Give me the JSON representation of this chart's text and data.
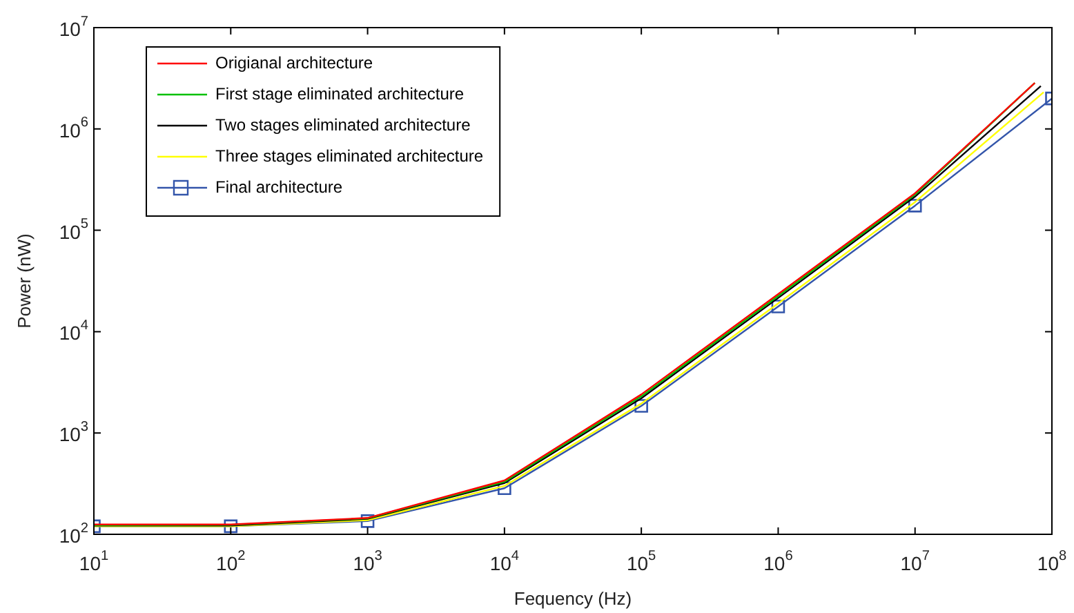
{
  "chart_data": {
    "type": "line",
    "xlabel": "Fequency (Hz)",
    "ylabel": "Power (nW)",
    "log": "xy",
    "grid": false,
    "legend": "top left",
    "line_style": "solid",
    "xlim": [
      10,
      100000000
    ],
    "ylim": [
      100,
      10000000
    ],
    "xticks": [
      {
        "value": 10,
        "label": "10$^{1}$"
      },
      {
        "value": 100,
        "label": "10$^{2}$"
      },
      {
        "value": 1000,
        "label": "10$^{3}$"
      },
      {
        "value": 10000,
        "label": "10$^{4}$"
      },
      {
        "value": 100000,
        "label": "10$^{5}$"
      },
      {
        "value": 1000000,
        "label": "10$^{6}$"
      },
      {
        "value": 10000000,
        "label": "10$^{7}$"
      },
      {
        "value": 100000000,
        "label": "10$^{8}$"
      }
    ],
    "yticks": [
      {
        "value": 100,
        "label": "10$^{2}$"
      },
      {
        "value": 1000,
        "label": "10$^{3}$"
      },
      {
        "value": 10000,
        "label": "10$^{4}$"
      },
      {
        "value": 100000,
        "label": "10$^{5}$"
      },
      {
        "value": 1000000,
        "label": "10$^{6}$"
      },
      {
        "value": 10000000,
        "label": "10$^{7}$"
      }
    ],
    "series": [
      {
        "name": "Origianal architecture",
        "color": "#ff0000",
        "marker": "none",
        "x": [
          10,
          100,
          1000,
          10000,
          100000,
          1000000,
          10000000,
          75000000
        ],
        "values": [
          125,
          125,
          145,
          340,
          2400,
          23500,
          232000,
          2850000
        ]
      },
      {
        "name": "First stage eliminated architecture",
        "color": "#00c000",
        "marker": "none",
        "x": [
          10,
          100,
          1000,
          10000,
          100000,
          1000000,
          10000000,
          75000000
        ],
        "values": [
          123,
          124,
          144,
          330,
          2300,
          22500,
          225000,
          2850000
        ]
      },
      {
        "name": "Two stages eliminated architecture",
        "color": "#000000",
        "marker": "none",
        "x": [
          10,
          100,
          1000,
          10000,
          100000,
          1000000,
          10000000,
          83000000
        ],
        "values": [
          122,
          122,
          142,
          320,
          2200,
          21500,
          215000,
          2650000
        ]
      },
      {
        "name": "Three stages eliminated architecture",
        "color": "#ffff00",
        "marker": "none",
        "x": [
          10,
          100,
          1000,
          10000,
          100000,
          1000000,
          10000000,
          87000000
        ],
        "values": [
          120,
          120,
          138,
          300,
          1950,
          19000,
          190000,
          2300000
        ]
      },
      {
        "name": "Final architecture",
        "color": "#3355aa",
        "marker": "square",
        "x": [
          10,
          100,
          1000,
          10000,
          100000,
          1000000,
          10000000,
          100000000
        ],
        "values": [
          120,
          120,
          135,
          285,
          1850,
          17700,
          175000,
          2000000
        ]
      }
    ]
  }
}
